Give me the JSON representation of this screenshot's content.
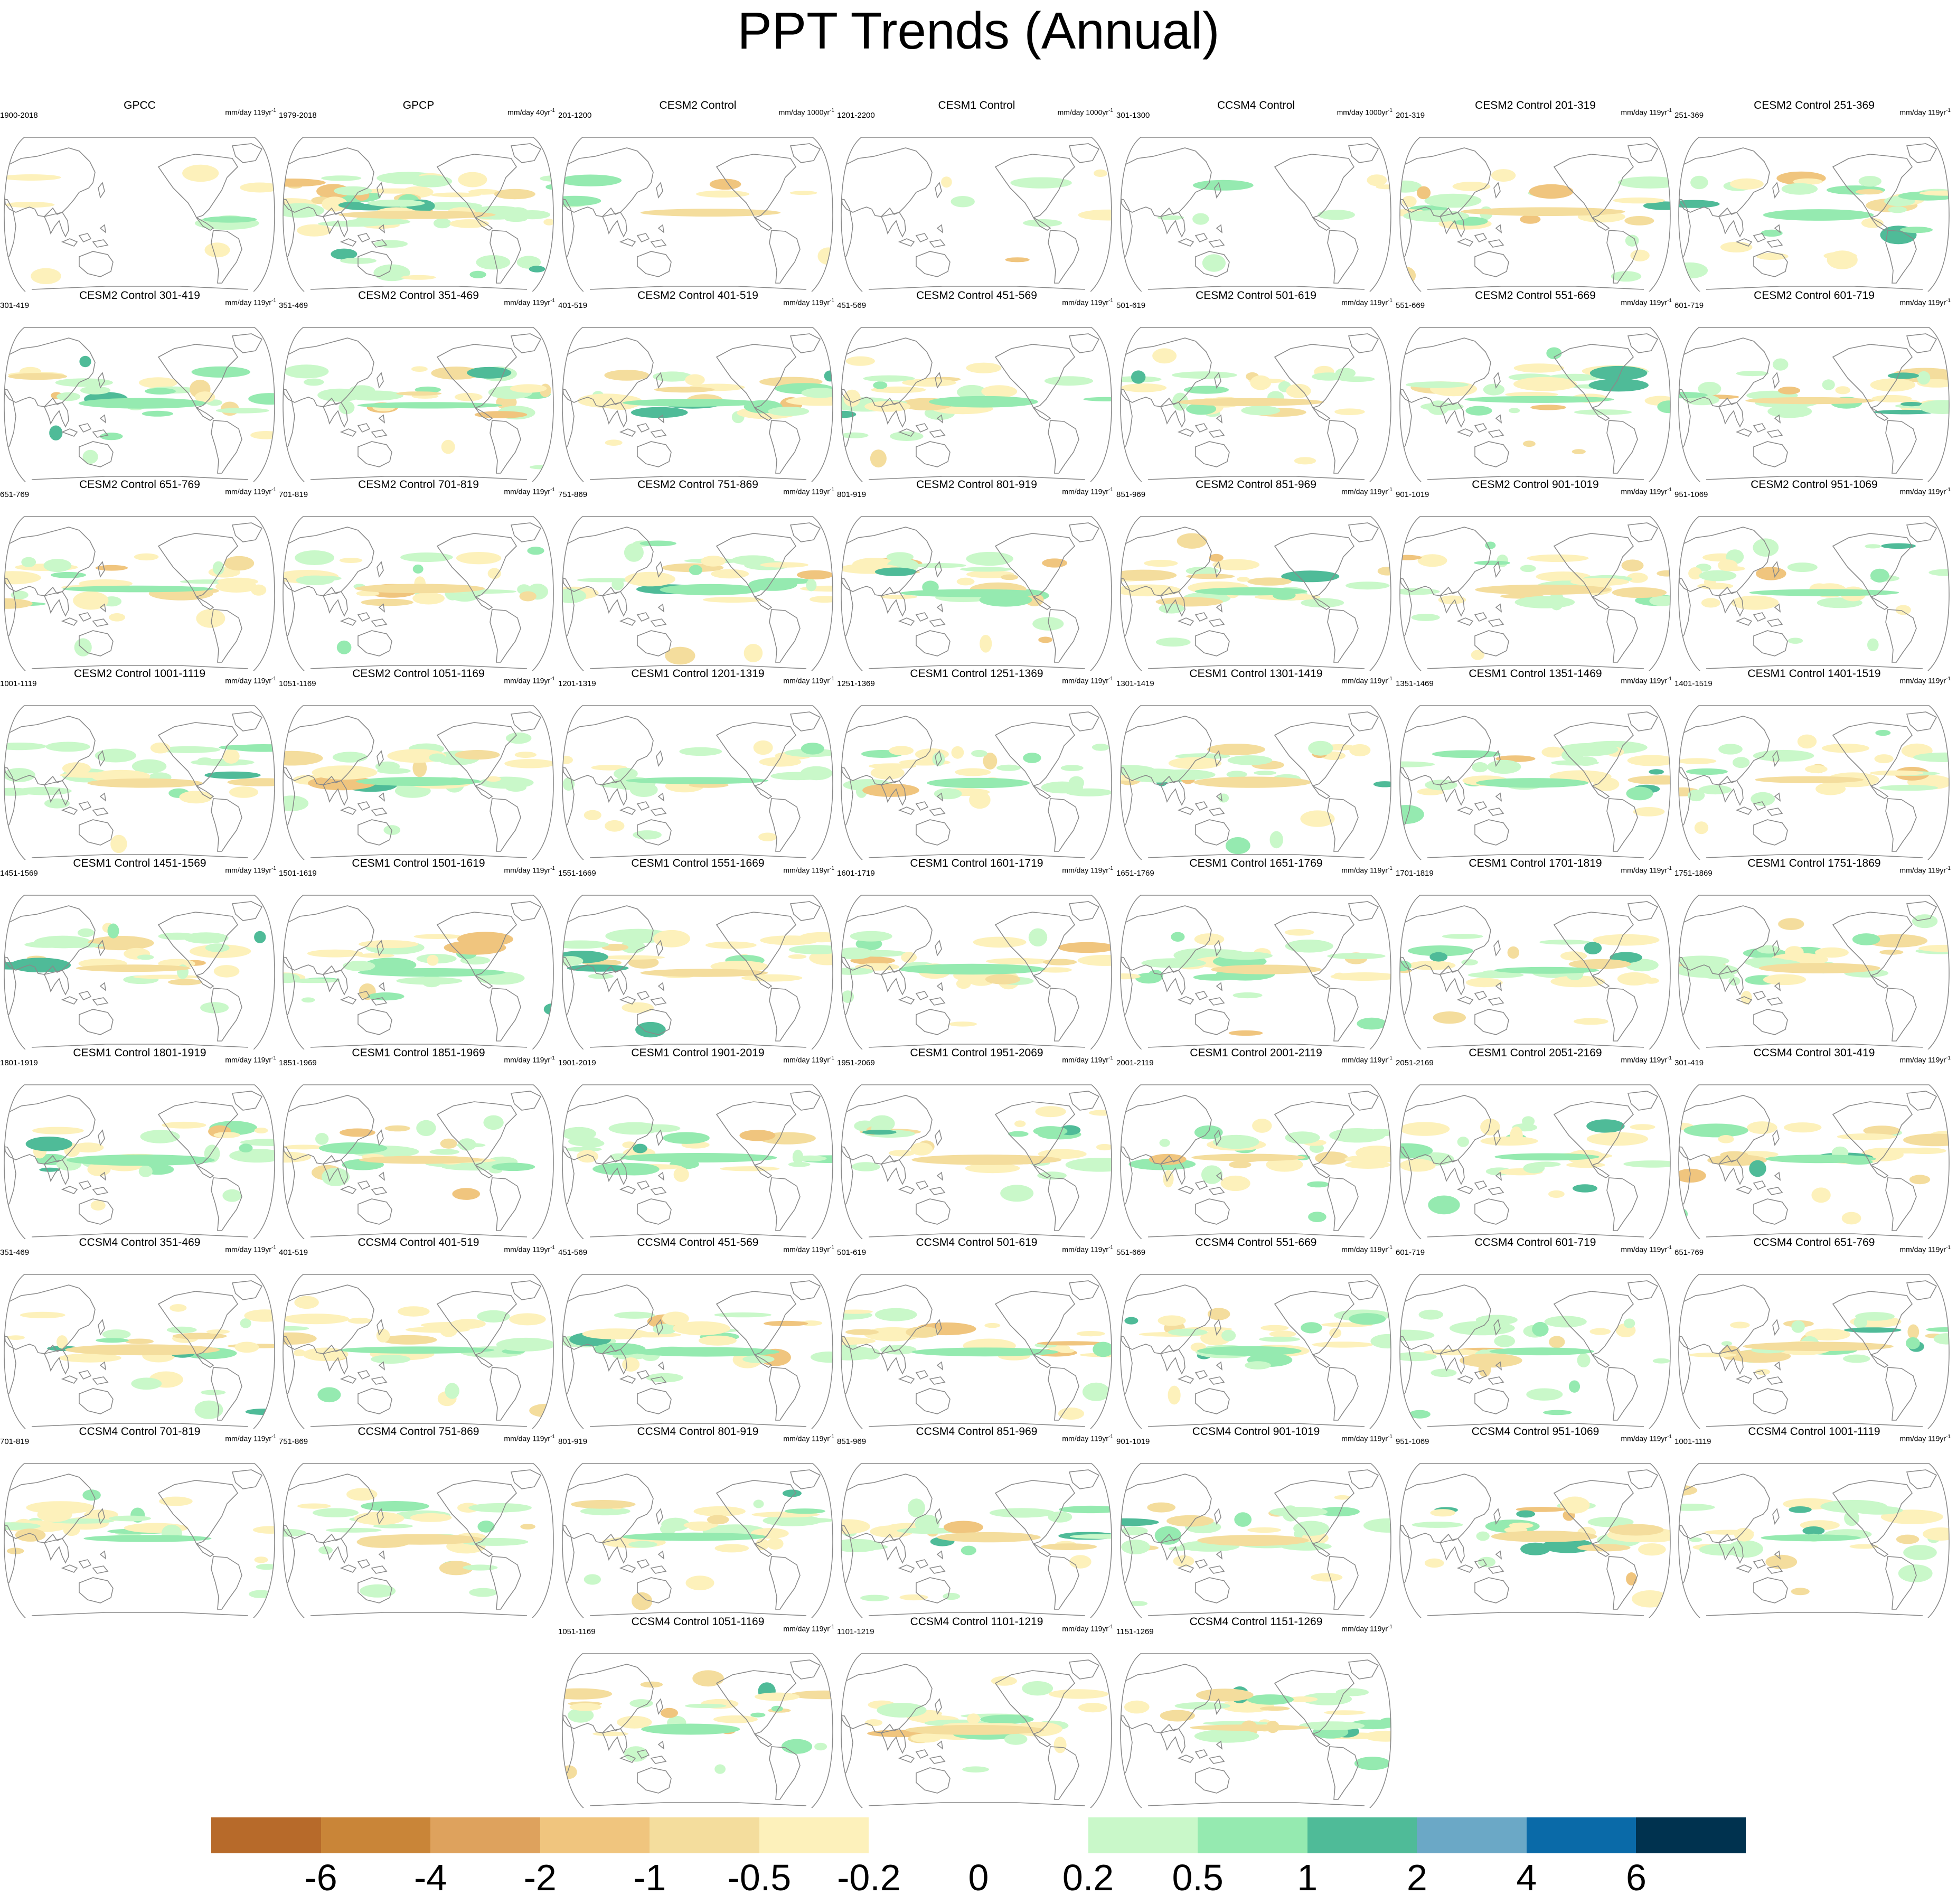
{
  "title": "PPT Trends (Annual)",
  "colors": {
    "land_outline": "#8a8a8a",
    "frame": "#8a8a8a"
  },
  "colorbar": {
    "colors": [
      "#b76a2a",
      "#c98538",
      "#dea25d",
      "#f0c57e",
      "#f4dd9d",
      "#fdf1bb",
      "#ffffff",
      "#ffffff",
      "#c9f8c9",
      "#95eab0",
      "#4fbb98",
      "#6ba8c6",
      "#0a6aa8",
      "#00324f"
    ],
    "labels": [
      "-6",
      "-4",
      "-2",
      "-1",
      "-0.5",
      "-0.2",
      "0",
      "0.2",
      "0.5",
      "1",
      "2",
      "4",
      "6"
    ]
  },
  "panels": [
    {
      "title": "GPCC",
      "left": "1900-2018",
      "unit": "mm/day 119yr",
      "sup": "-1"
    },
    {
      "title": "GPCP",
      "left": "1979-2018",
      "unit": "mm/day 40yr",
      "sup": "-1"
    },
    {
      "title": "CESM2 Control",
      "left": "201-1200",
      "unit": "mm/day 1000yr",
      "sup": "-1"
    },
    {
      "title": "CESM1 Control",
      "left": "1201-2200",
      "unit": "mm/day 1000yr",
      "sup": "-1"
    },
    {
      "title": "CCSM4 Control",
      "left": "301-1300",
      "unit": "mm/day 1000yr",
      "sup": "-1"
    },
    {
      "title": "CESM2 Control 201-319",
      "left": "201-319",
      "unit": "mm/day 119yr",
      "sup": "-1"
    },
    {
      "title": "CESM2 Control 251-369",
      "left": "251-369",
      "unit": "mm/day 119yr",
      "sup": "-1"
    },
    {
      "title": "CESM2 Control 301-419",
      "left": "301-419",
      "unit": "mm/day 119yr",
      "sup": "-1"
    },
    {
      "title": "CESM2 Control 351-469",
      "left": "351-469",
      "unit": "mm/day 119yr",
      "sup": "-1"
    },
    {
      "title": "CESM2 Control 401-519",
      "left": "401-519",
      "unit": "mm/day 119yr",
      "sup": "-1"
    },
    {
      "title": "CESM2 Control 451-569",
      "left": "451-569",
      "unit": "mm/day 119yr",
      "sup": "-1"
    },
    {
      "title": "CESM2 Control 501-619",
      "left": "501-619",
      "unit": "mm/day 119yr",
      "sup": "-1"
    },
    {
      "title": "CESM2 Control 551-669",
      "left": "551-669",
      "unit": "mm/day 119yr",
      "sup": "-1"
    },
    {
      "title": "CESM2 Control 601-719",
      "left": "601-719",
      "unit": "mm/day 119yr",
      "sup": "-1"
    },
    {
      "title": "CESM2 Control 651-769",
      "left": "651-769",
      "unit": "mm/day 119yr",
      "sup": "-1"
    },
    {
      "title": "CESM2 Control 701-819",
      "left": "701-819",
      "unit": "mm/day 119yr",
      "sup": "-1"
    },
    {
      "title": "CESM2 Control 751-869",
      "left": "751-869",
      "unit": "mm/day 119yr",
      "sup": "-1"
    },
    {
      "title": "CESM2 Control 801-919",
      "left": "801-919",
      "unit": "mm/day 119yr",
      "sup": "-1"
    },
    {
      "title": "CESM2 Control 851-969",
      "left": "851-969",
      "unit": "mm/day 119yr",
      "sup": "-1"
    },
    {
      "title": "CESM2 Control 901-1019",
      "left": "901-1019",
      "unit": "mm/day 119yr",
      "sup": "-1"
    },
    {
      "title": "CESM2 Control 951-1069",
      "left": "951-1069",
      "unit": "mm/day 119yr",
      "sup": "-1"
    },
    {
      "title": "CESM2 Control 1001-1119",
      "left": "1001-1119",
      "unit": "mm/day 119yr",
      "sup": "-1"
    },
    {
      "title": "CESM2 Control 1051-1169",
      "left": "1051-1169",
      "unit": "mm/day 119yr",
      "sup": "-1"
    },
    {
      "title": "CESM1 Control 1201-1319",
      "left": "1201-1319",
      "unit": "mm/day 119yr",
      "sup": "-1"
    },
    {
      "title": "CESM1 Control 1251-1369",
      "left": "1251-1369",
      "unit": "mm/day 119yr",
      "sup": "-1"
    },
    {
      "title": "CESM1 Control 1301-1419",
      "left": "1301-1419",
      "unit": "mm/day 119yr",
      "sup": "-1"
    },
    {
      "title": "CESM1 Control 1351-1469",
      "left": "1351-1469",
      "unit": "mm/day 119yr",
      "sup": "-1"
    },
    {
      "title": "CESM1 Control 1401-1519",
      "left": "1401-1519",
      "unit": "mm/day 119yr",
      "sup": "-1"
    },
    {
      "title": "CESM1 Control 1451-1569",
      "left": "1451-1569",
      "unit": "mm/day 119yr",
      "sup": "-1"
    },
    {
      "title": "CESM1 Control 1501-1619",
      "left": "1501-1619",
      "unit": "mm/day 119yr",
      "sup": "-1"
    },
    {
      "title": "CESM1 Control 1551-1669",
      "left": "1551-1669",
      "unit": "mm/day 119yr",
      "sup": "-1"
    },
    {
      "title": "CESM1 Control 1601-1719",
      "left": "1601-1719",
      "unit": "mm/day 119yr",
      "sup": "-1"
    },
    {
      "title": "CESM1 Control 1651-1769",
      "left": "1651-1769",
      "unit": "mm/day 119yr",
      "sup": "-1"
    },
    {
      "title": "CESM1 Control 1701-1819",
      "left": "1701-1819",
      "unit": "mm/day 119yr",
      "sup": "-1"
    },
    {
      "title": "CESM1 Control 1751-1869",
      "left": "1751-1869",
      "unit": "mm/day 119yr",
      "sup": "-1"
    },
    {
      "title": "CESM1 Control 1801-1919",
      "left": "1801-1919",
      "unit": "mm/day 119yr",
      "sup": "-1"
    },
    {
      "title": "CESM1 Control 1851-1969",
      "left": "1851-1969",
      "unit": "mm/day 119yr",
      "sup": "-1"
    },
    {
      "title": "CESM1 Control 1901-2019",
      "left": "1901-2019",
      "unit": "mm/day 119yr",
      "sup": "-1"
    },
    {
      "title": "CESM1 Control 1951-2069",
      "left": "1951-2069",
      "unit": "mm/day 119yr",
      "sup": "-1"
    },
    {
      "title": "CESM1 Control 2001-2119",
      "left": "2001-2119",
      "unit": "mm/day 119yr",
      "sup": "-1"
    },
    {
      "title": "CESM1 Control 2051-2169",
      "left": "2051-2169",
      "unit": "mm/day 119yr",
      "sup": "-1"
    },
    {
      "title": "CCSM4 Control 301-419",
      "left": "301-419",
      "unit": "mm/day 119yr",
      "sup": "-1"
    },
    {
      "title": "CCSM4 Control 351-469",
      "left": "351-469",
      "unit": "mm/day 119yr",
      "sup": "-1"
    },
    {
      "title": "CCSM4 Control 401-519",
      "left": "401-519",
      "unit": "mm/day 119yr",
      "sup": "-1"
    },
    {
      "title": "CCSM4 Control 451-569",
      "left": "451-569",
      "unit": "mm/day 119yr",
      "sup": "-1"
    },
    {
      "title": "CCSM4 Control 501-619",
      "left": "501-619",
      "unit": "mm/day 119yr",
      "sup": "-1"
    },
    {
      "title": "CCSM4 Control 551-669",
      "left": "551-669",
      "unit": "mm/day 119yr",
      "sup": "-1"
    },
    {
      "title": "CCSM4 Control 601-719",
      "left": "601-719",
      "unit": "mm/day 119yr",
      "sup": "-1"
    },
    {
      "title": "CCSM4 Control 651-769",
      "left": "651-769",
      "unit": "mm/day 119yr",
      "sup": "-1"
    },
    {
      "title": "CCSM4 Control 701-819",
      "left": "701-819",
      "unit": "mm/day 119yr",
      "sup": "-1"
    },
    {
      "title": "CCSM4 Control 751-869",
      "left": "751-869",
      "unit": "mm/day 119yr",
      "sup": "-1"
    },
    {
      "title": "CCSM4 Control 801-919",
      "left": "801-919",
      "unit": "mm/day 119yr",
      "sup": "-1"
    },
    {
      "title": "CCSM4 Control 851-969",
      "left": "851-969",
      "unit": "mm/day 119yr",
      "sup": "-1"
    },
    {
      "title": "CCSM4 Control 901-1019",
      "left": "901-1019",
      "unit": "mm/day 119yr",
      "sup": "-1"
    },
    {
      "title": "CCSM4 Control 951-1069",
      "left": "951-1069",
      "unit": "mm/day 119yr",
      "sup": "-1"
    },
    {
      "title": "CCSM4 Control 1001-1119",
      "left": "1001-1119",
      "unit": "mm/day 119yr",
      "sup": "-1"
    },
    {
      "title": "CCSM4 Control 1051-1169",
      "left": "1051-1169",
      "unit": "mm/day 119yr",
      "sup": "-1"
    },
    {
      "title": "CCSM4 Control 1101-1219",
      "left": "1101-1219",
      "unit": "mm/day 119yr",
      "sup": "-1"
    },
    {
      "title": "CCSM4 Control 1151-1269",
      "left": "1151-1269",
      "unit": "mm/day 119yr",
      "sup": "-1"
    }
  ]
}
